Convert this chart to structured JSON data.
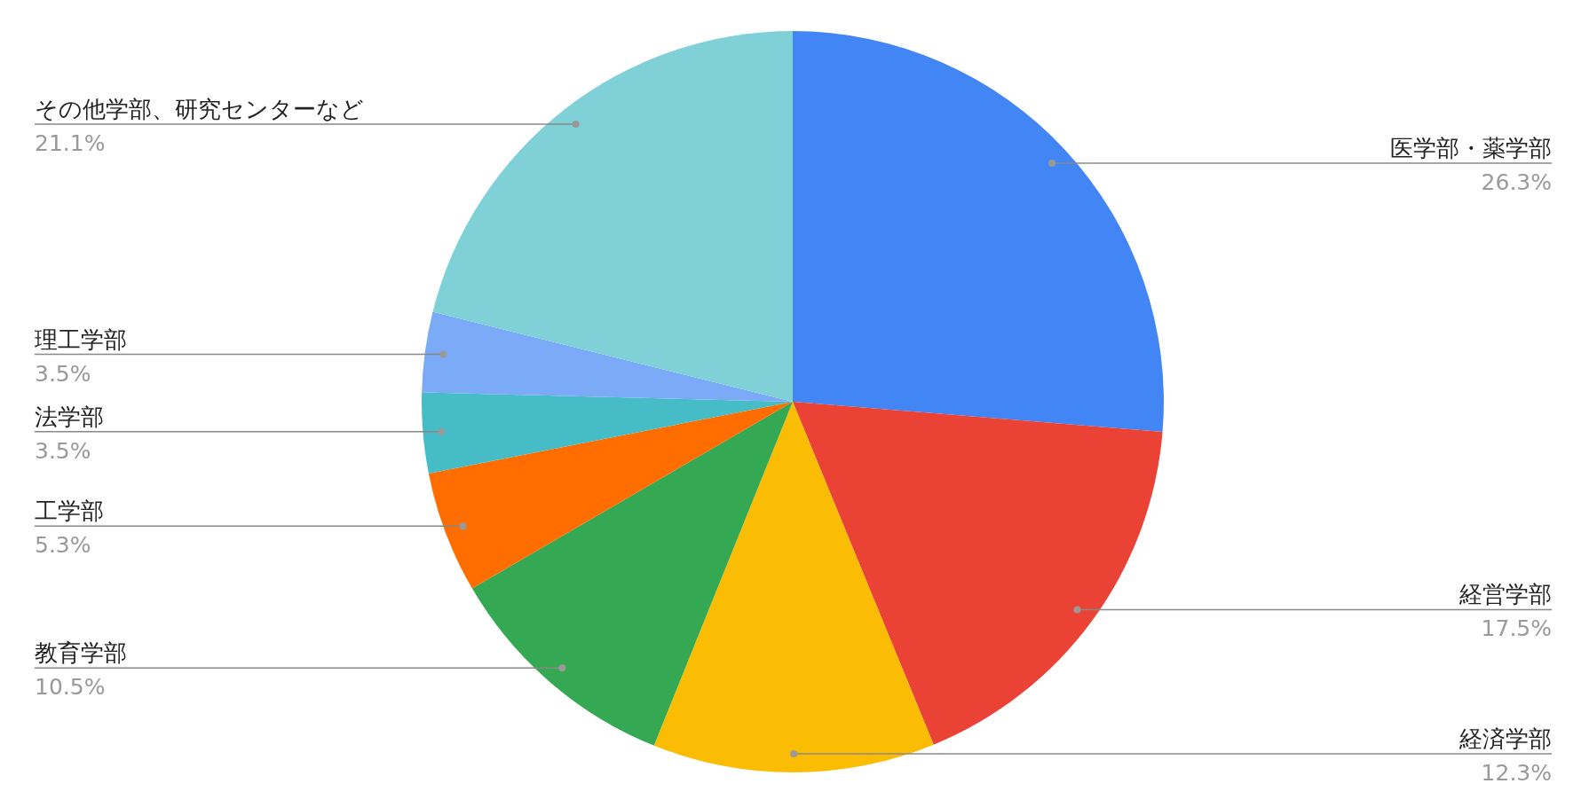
{
  "chart_data": {
    "type": "pie",
    "categories": [
      "医学部・薬学部",
      "経営学部",
      "経済学部",
      "教育学部",
      "工学部",
      "法学部",
      "理工学部",
      "その他学部、研究センターなど"
    ],
    "values": [
      26.3,
      17.5,
      12.3,
      10.5,
      5.3,
      3.5,
      3.5,
      21.1
    ],
    "value_labels": [
      "26.3%",
      "17.5%",
      "12.3%",
      "10.5%",
      "5.3%",
      "3.5%",
      "3.5%",
      "21.1%"
    ],
    "colors": [
      "#4285f4",
      "#ea4335",
      "#fbbc04",
      "#34a853",
      "#ff6d01",
      "#46bdc6",
      "#7baaf7",
      "#7fd1d7"
    ]
  }
}
